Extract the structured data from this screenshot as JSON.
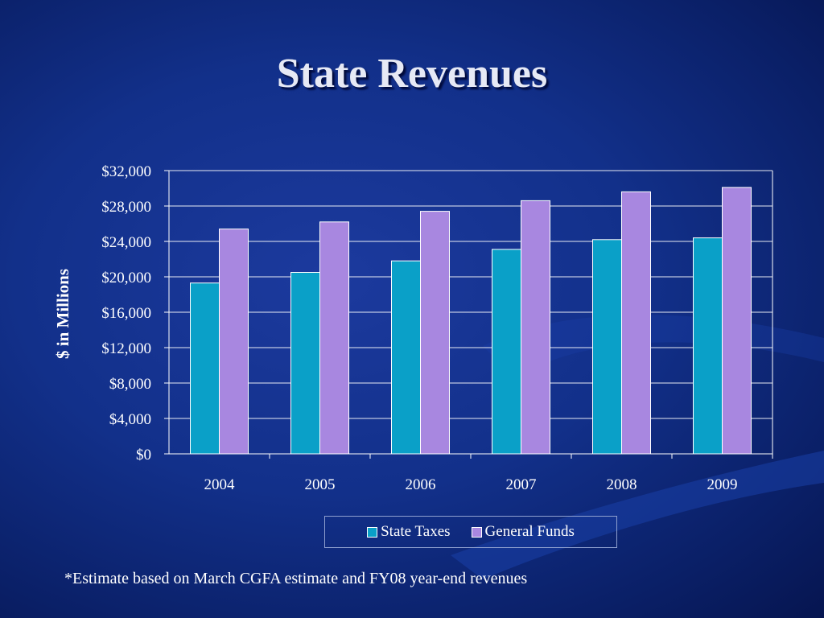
{
  "slide": {
    "title": "State Revenues",
    "footnote": "*Estimate based on March CGFA estimate and FY08 year-end revenues"
  },
  "colors": {
    "background": "#12308a",
    "state_taxes": "#0aa0c8",
    "general_funds": "#a887e0",
    "text": "#ffffff"
  },
  "chart_data": {
    "type": "bar",
    "title": "",
    "xlabel": "",
    "ylabel": "$ in Millions",
    "categories": [
      "2004",
      "2005",
      "2006",
      "2007",
      "2008",
      "2009"
    ],
    "series": [
      {
        "name": "State Taxes",
        "values": [
          19300,
          20500,
          21800,
          23100,
          24200,
          24400
        ]
      },
      {
        "name": "General Funds",
        "values": [
          25400,
          26200,
          27400,
          28600,
          29600,
          30100
        ]
      }
    ],
    "ylim": [
      0,
      32000
    ],
    "yticks": [
      0,
      4000,
      8000,
      12000,
      16000,
      20000,
      24000,
      28000,
      32000
    ],
    "ytick_labels": [
      "$0",
      "$4,000",
      "$8,000",
      "$12,000",
      "$16,000",
      "$20,000",
      "$24,000",
      "$28,000",
      "$32,000"
    ],
    "grid": true,
    "legend_position": "bottom"
  }
}
